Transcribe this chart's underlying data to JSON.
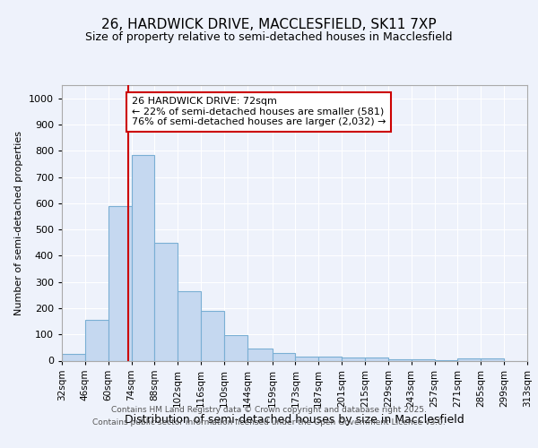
{
  "title_line1": "26, HARDWICK DRIVE, MACCLESFIELD, SK11 7XP",
  "title_line2": "Size of property relative to semi-detached houses in Macclesfield",
  "xlabel": "Distribution of semi-detached houses by size in Macclesfield",
  "ylabel": "Number of semi-detached properties",
  "bin_labels": [
    "32sqm",
    "46sqm",
    "60sqm",
    "74sqm",
    "88sqm",
    "102sqm",
    "116sqm",
    "130sqm",
    "144sqm",
    "159sqm",
    "173sqm",
    "187sqm",
    "201sqm",
    "215sqm",
    "229sqm",
    "243sqm",
    "257sqm",
    "271sqm",
    "285sqm",
    "299sqm",
    "313sqm"
  ],
  "bin_edges": [
    32,
    46,
    60,
    74,
    88,
    102,
    116,
    130,
    144,
    159,
    173,
    187,
    201,
    215,
    229,
    243,
    257,
    271,
    285,
    299,
    313
  ],
  "bar_heights": [
    27,
    157,
    590,
    783,
    450,
    265,
    190,
    97,
    47,
    30,
    14,
    14,
    11,
    11,
    5,
    5,
    3,
    8,
    10,
    0
  ],
  "bar_color": "#c5d8f0",
  "bar_edge_color": "#7aafd4",
  "property_size": 72,
  "red_line_color": "#cc0000",
  "annotation_text_line1": "26 HARDWICK DRIVE: 72sqm",
  "annotation_text_line2": "← 22% of semi-detached houses are smaller (581)",
  "annotation_text_line3": "76% of semi-detached houses are larger (2,032) →",
  "annotation_box_color": "#ffffff",
  "annotation_box_edge": "#cc0000",
  "ylim": [
    0,
    1050
  ],
  "yticks": [
    0,
    100,
    200,
    300,
    400,
    500,
    600,
    700,
    800,
    900,
    1000
  ],
  "footer_line1": "Contains HM Land Registry data © Crown copyright and database right 2025.",
  "footer_line2": "Contains public sector information licensed under the Open Government Licence v3.0.",
  "bg_color": "#eef2fb",
  "plot_bg_color": "#eef2fb",
  "grid_color": "#ffffff",
  "title_fontsize": 11,
  "subtitle_fontsize": 9,
  "ylabel_fontsize": 8,
  "xlabel_fontsize": 9,
  "tick_fontsize": 8,
  "xtick_fontsize": 7.5,
  "ann_fontsize": 8,
  "footer_fontsize": 6.5
}
